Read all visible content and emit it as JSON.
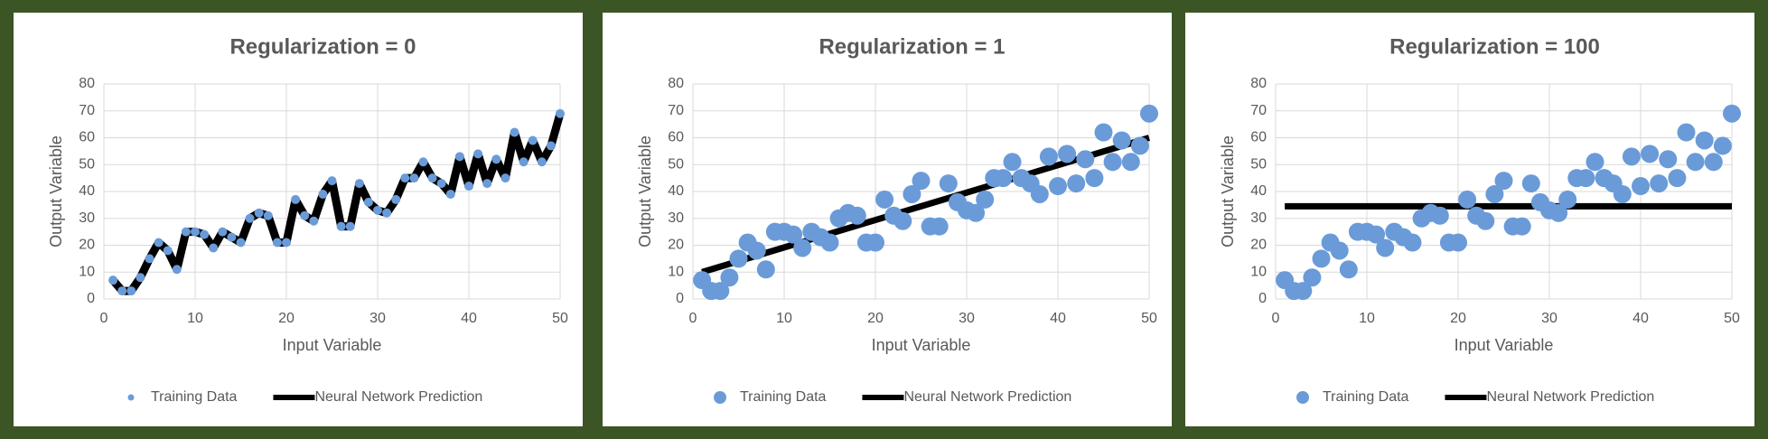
{
  "chart_data": [
    {
      "type": "scatter",
      "title": "Regularization = 0",
      "x_label": "Input Variable",
      "y_label": "Output Variable",
      "xlim": [
        0,
        50
      ],
      "xticks": [
        0,
        10,
        20,
        30,
        40,
        50
      ],
      "ylim": [
        0,
        80
      ],
      "yticks": [
        0,
        10,
        20,
        30,
        40,
        50,
        60,
        70,
        80
      ],
      "grid": true,
      "legend": "bottom",
      "series": [
        {
          "name": "Training Data",
          "color": "#6a9bd8",
          "mode": "markers",
          "x": [
            1,
            2,
            3,
            4,
            5,
            6,
            7,
            8,
            9,
            10,
            11,
            12,
            13,
            14,
            15,
            16,
            17,
            18,
            19,
            20,
            21,
            22,
            23,
            24,
            25,
            26,
            27,
            28,
            29,
            30,
            31,
            32,
            33,
            34,
            35,
            36,
            37,
            38,
            39,
            40,
            41,
            42,
            43,
            44,
            45,
            46,
            47,
            48,
            49,
            50
          ],
          "values": [
            7,
            3,
            3,
            8,
            15,
            21,
            18,
            11,
            25,
            25,
            24,
            19,
            25,
            23,
            21,
            30,
            32,
            31,
            21,
            21,
            37,
            31,
            29,
            39,
            44,
            27,
            27,
            43,
            36,
            33,
            32,
            37,
            45,
            45,
            51,
            45,
            43,
            39,
            53,
            42,
            54,
            43,
            52,
            45,
            62,
            51,
            59,
            51,
            57,
            69
          ]
        },
        {
          "name": "Neural Network Prediction",
          "color": "#000000",
          "mode": "line",
          "x": [
            1,
            2,
            3,
            4,
            5,
            6,
            7,
            8,
            9,
            10,
            11,
            12,
            13,
            14,
            15,
            16,
            17,
            18,
            19,
            20,
            21,
            22,
            23,
            24,
            25,
            26,
            27,
            28,
            29,
            30,
            31,
            32,
            33,
            34,
            35,
            36,
            37,
            38,
            39,
            40,
            41,
            42,
            43,
            44,
            45,
            46,
            47,
            48,
            49,
            50
          ],
          "values": [
            7,
            3,
            3,
            8,
            15,
            21,
            18,
            11,
            25,
            25,
            24,
            19,
            25,
            23,
            21,
            30,
            32,
            31,
            21,
            21,
            37,
            31,
            29,
            39,
            44,
            27,
            27,
            43,
            36,
            33,
            32,
            37,
            45,
            45,
            51,
            45,
            43,
            39,
            53,
            42,
            54,
            43,
            52,
            45,
            62,
            51,
            59,
            51,
            57,
            69
          ]
        }
      ]
    },
    {
      "type": "scatter",
      "title": "Regularization = 1",
      "x_label": "Input Variable",
      "y_label": "Output Variable",
      "xlim": [
        0,
        50
      ],
      "xticks": [
        0,
        10,
        20,
        30,
        40,
        50
      ],
      "ylim": [
        0,
        80
      ],
      "yticks": [
        0,
        10,
        20,
        30,
        40,
        50,
        60,
        70,
        80
      ],
      "grid": true,
      "legend": "bottom",
      "series": [
        {
          "name": "Training Data",
          "color": "#6a9bd8",
          "mode": "markers",
          "x": [
            1,
            2,
            3,
            4,
            5,
            6,
            7,
            8,
            9,
            10,
            11,
            12,
            13,
            14,
            15,
            16,
            17,
            18,
            19,
            20,
            21,
            22,
            23,
            24,
            25,
            26,
            27,
            28,
            29,
            30,
            31,
            32,
            33,
            34,
            35,
            36,
            37,
            38,
            39,
            40,
            41,
            42,
            43,
            44,
            45,
            46,
            47,
            48,
            49,
            50
          ],
          "values": [
            7,
            3,
            3,
            8,
            15,
            21,
            18,
            11,
            25,
            25,
            24,
            19,
            25,
            23,
            21,
            30,
            32,
            31,
            21,
            21,
            37,
            31,
            29,
            39,
            44,
            27,
            27,
            43,
            36,
            33,
            32,
            37,
            45,
            45,
            51,
            45,
            43,
            39,
            53,
            42,
            54,
            43,
            52,
            45,
            62,
            51,
            59,
            51,
            57,
            69
          ]
        },
        {
          "name": "Neural Network Prediction",
          "color": "#000000",
          "mode": "line",
          "x": [
            1,
            50
          ],
          "values": [
            10,
            60
          ]
        }
      ]
    },
    {
      "type": "scatter",
      "title": "Regularization = 100",
      "x_label": "Input Variable",
      "y_label": "Output Variable",
      "xlim": [
        0,
        50
      ],
      "xticks": [
        0,
        10,
        20,
        30,
        40,
        50
      ],
      "ylim": [
        0,
        80
      ],
      "yticks": [
        0,
        10,
        20,
        30,
        40,
        50,
        60,
        70,
        80
      ],
      "grid": true,
      "legend": "bottom",
      "series": [
        {
          "name": "Training Data",
          "color": "#6a9bd8",
          "mode": "markers",
          "x": [
            1,
            2,
            3,
            4,
            5,
            6,
            7,
            8,
            9,
            10,
            11,
            12,
            13,
            14,
            15,
            16,
            17,
            18,
            19,
            20,
            21,
            22,
            23,
            24,
            25,
            26,
            27,
            28,
            29,
            30,
            31,
            32,
            33,
            34,
            35,
            36,
            37,
            38,
            39,
            40,
            41,
            42,
            43,
            44,
            45,
            46,
            47,
            48,
            49,
            50
          ],
          "values": [
            7,
            3,
            3,
            8,
            15,
            21,
            18,
            11,
            25,
            25,
            24,
            19,
            25,
            23,
            21,
            30,
            32,
            31,
            21,
            21,
            37,
            31,
            29,
            39,
            44,
            27,
            27,
            43,
            36,
            33,
            32,
            37,
            45,
            45,
            51,
            45,
            43,
            39,
            53,
            42,
            54,
            43,
            52,
            45,
            62,
            51,
            59,
            51,
            57,
            69
          ]
        },
        {
          "name": "Neural Network Prediction",
          "color": "#000000",
          "mode": "line",
          "x": [
            1,
            50
          ],
          "values": [
            34.5,
            34.5
          ]
        }
      ]
    }
  ]
}
